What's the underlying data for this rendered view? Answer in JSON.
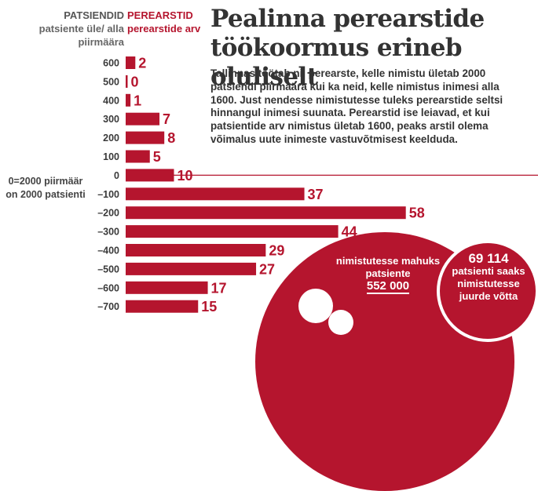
{
  "headers": {
    "left_title": "PATSIENDID",
    "left_sub": "patsiente üle/ alla piirmäära",
    "right_title": "PEREARSTID",
    "right_sub": "perearstide arv"
  },
  "title": "Pealinna perearstide töökoormus erineb oluliselt",
  "body": "Tallinnas töötab nii perearste, kelle nimistu ületab 2000 patsiendi piirmäära kui ka neid, kelle nimistus inimesi alla 1600. Just nendesse nimistutesse tuleks perearstide seltsi hinnangul inimesi suunata. Perearstid ise leiavad, et kui patsientide arv nimistus ületab 1600, peaks arstil olema võimalus uute inimeste vastuvõtmisest keelduda.",
  "zero_note": "0=2000 piirmäär on 2000 patsienti",
  "callouts": {
    "left_label": "nimistutesse mahuks patsiente",
    "left_value": "552 000",
    "right_value": "69 114",
    "right_label": "patsienti saaks nimistutesse juurde võtta"
  },
  "colors": {
    "accent": "#b5152e",
    "text": "#333333",
    "muted": "#666666"
  },
  "chart_data": {
    "type": "bar",
    "orientation": "horizontal",
    "categories": [
      "600",
      "500",
      "400",
      "300",
      "200",
      "100",
      "0",
      "–100",
      "–200",
      "–300",
      "–400",
      "–500",
      "–600",
      "–700"
    ],
    "values": [
      2,
      0,
      1,
      7,
      8,
      5,
      10,
      37,
      58,
      44,
      29,
      27,
      17,
      15
    ],
    "series": [
      {
        "name": "PEREARSTID",
        "values": [
          2,
          0,
          1,
          7,
          8,
          5,
          10,
          37,
          58,
          44,
          29,
          27,
          17,
          15
        ]
      }
    ],
    "xlabel": "perearstide arv",
    "ylabel": "patsiente üle/ alla piirmäära",
    "title": "",
    "bar_color": "#b5152e"
  }
}
